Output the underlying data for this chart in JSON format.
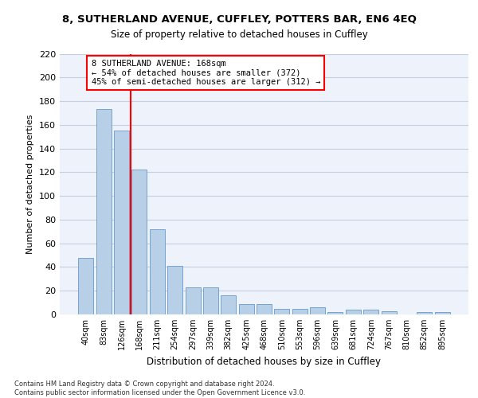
{
  "title1": "8, SUTHERLAND AVENUE, CUFFLEY, POTTERS BAR, EN6 4EQ",
  "title2": "Size of property relative to detached houses in Cuffley",
  "xlabel": "Distribution of detached houses by size in Cuffley",
  "ylabel": "Number of detached properties",
  "categories": [
    "40sqm",
    "83sqm",
    "126sqm",
    "168sqm",
    "211sqm",
    "254sqm",
    "297sqm",
    "339sqm",
    "382sqm",
    "425sqm",
    "468sqm",
    "510sqm",
    "553sqm",
    "596sqm",
    "639sqm",
    "681sqm",
    "724sqm",
    "767sqm",
    "810sqm",
    "852sqm",
    "895sqm"
  ],
  "values": [
    48,
    173,
    155,
    122,
    72,
    41,
    23,
    23,
    16,
    9,
    9,
    5,
    5,
    6,
    2,
    4,
    4,
    3,
    0,
    2,
    2
  ],
  "bar_color": "#b8cfe8",
  "bar_edge_color": "#6699cc",
  "vline_color": "red",
  "vline_index": 3,
  "annotation_text": "8 SUTHERLAND AVENUE: 168sqm\n← 54% of detached houses are smaller (372)\n45% of semi-detached houses are larger (312) →",
  "annotation_box_color": "white",
  "annotation_box_edge": "red",
  "ylim": [
    0,
    220
  ],
  "yticks": [
    0,
    20,
    40,
    60,
    80,
    100,
    120,
    140,
    160,
    180,
    200,
    220
  ],
  "footnote": "Contains HM Land Registry data © Crown copyright and database right 2024.\nContains public sector information licensed under the Open Government Licence v3.0.",
  "bg_color": "#eef2fa",
  "grid_color": "#c5cfe0"
}
